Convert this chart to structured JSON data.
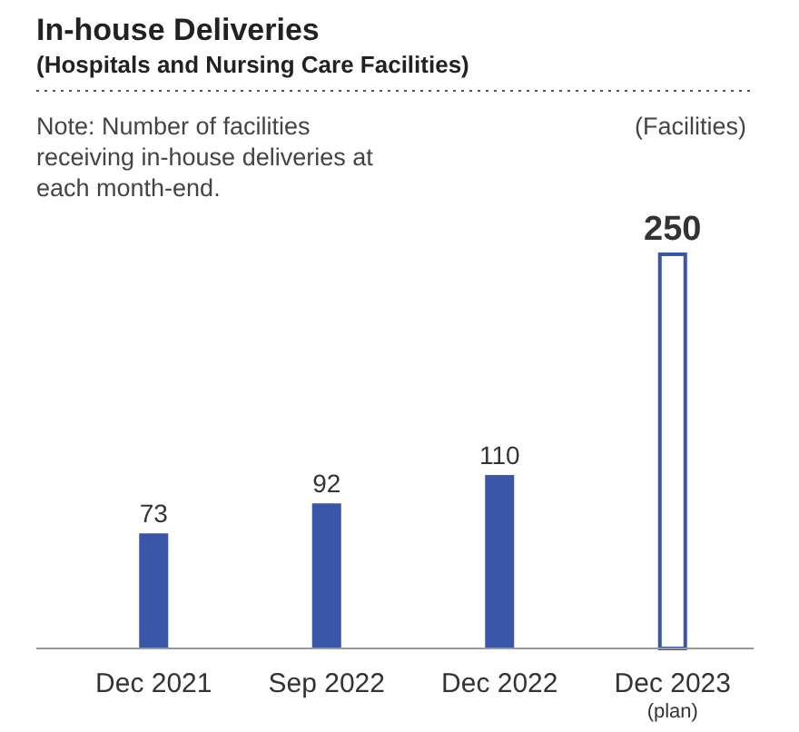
{
  "chart_data": {
    "type": "bar",
    "title": "In-house Deliveries",
    "subtitle": "(Hospitals and Nursing Care Facilities)",
    "ylabel": "(Facilities)",
    "annotations": [
      "Note: Number of facilities receiving in-house deliveries at each month-end."
    ],
    "categories": [
      "Dec 2021",
      "Sep 2022",
      "Dec 2022",
      "Dec 2023\n(plan)"
    ],
    "values": [
      73,
      92,
      110,
      250
    ],
    "color": "#3a56a8",
    "colors": [
      "#3a56a8",
      "#3a56a8",
      "#3a56a8",
      "#ffffff"
    ],
    "data_labels": true
  }
}
